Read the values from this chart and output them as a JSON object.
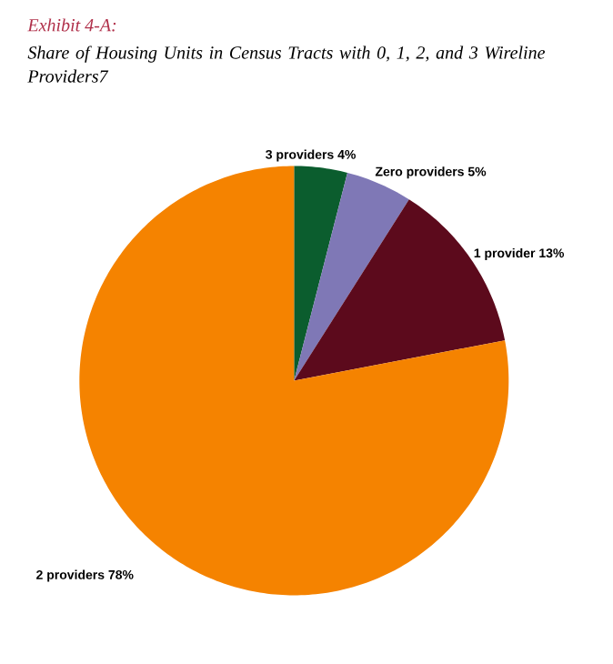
{
  "chart_data": {
    "type": "pie",
    "title": "Exhibit 4-A:",
    "subtitle": "Share of Housing Units in Census Tracts with 0, 1, 2, and 3 Wireline Providers7",
    "categories": [
      "3 providers",
      "Zero providers",
      "1 provider",
      "2 providers"
    ],
    "values": [
      4,
      5,
      13,
      78
    ],
    "value_labels": [
      "4%",
      "5%",
      "13%",
      "78%"
    ],
    "colors": [
      "#0b5d2e",
      "#7f78b6",
      "#5c0a1c",
      "#f58300"
    ]
  }
}
